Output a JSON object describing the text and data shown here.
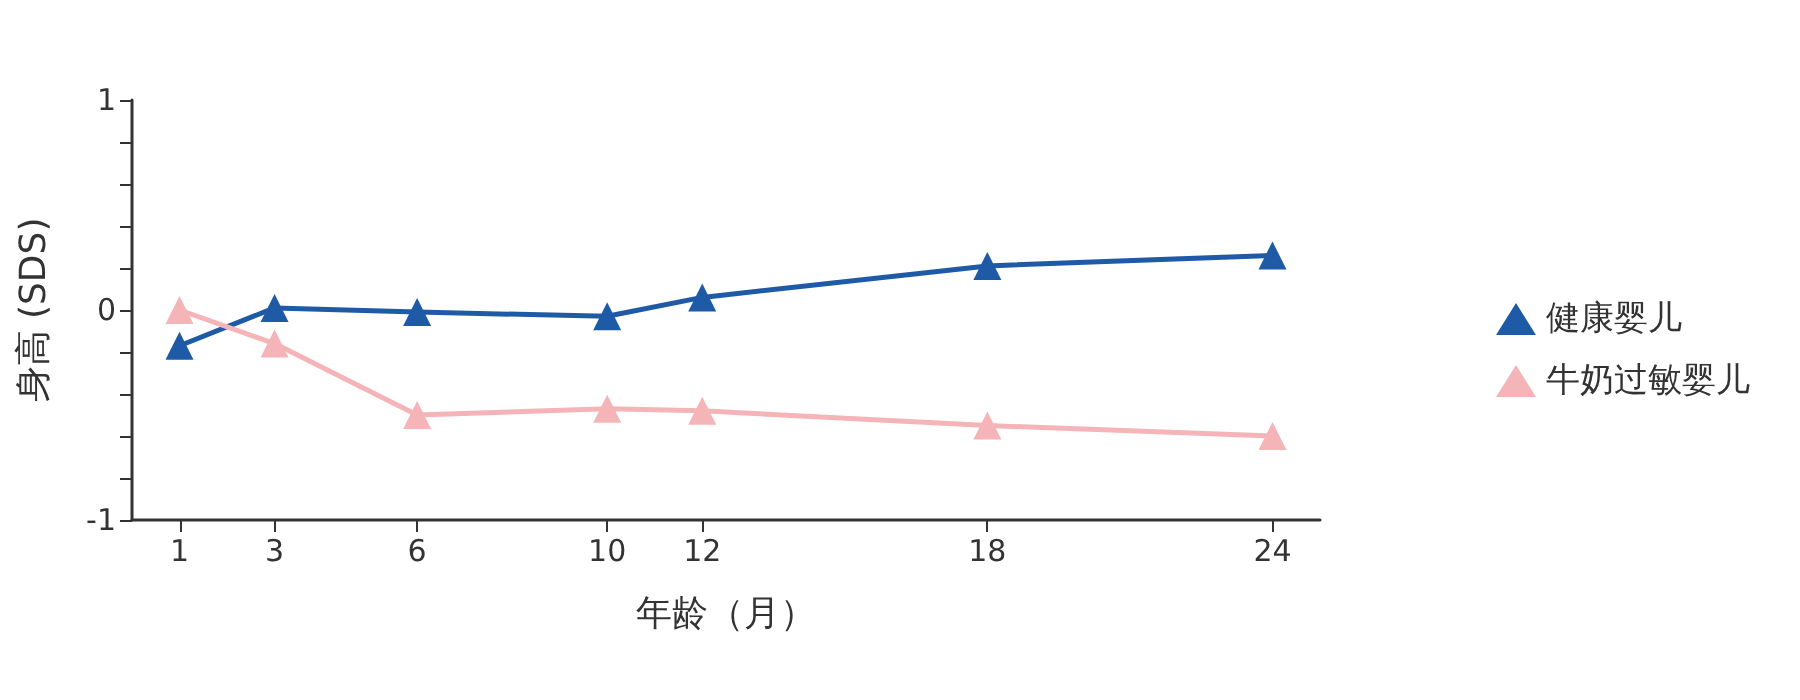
{
  "chart_data": {
    "type": "line",
    "xlabel": "年龄（月）",
    "ylabel": "身高 (SDS)",
    "x": [
      1,
      3,
      6,
      10,
      12,
      18,
      24
    ],
    "series": [
      {
        "name": "健康婴儿",
        "color": "#1f5aa6",
        "values": [
          -0.17,
          0.01,
          -0.01,
          -0.03,
          0.06,
          0.21,
          0.26
        ]
      },
      {
        "name": "牛奶过敏婴儿",
        "color": "#f4b4b8",
        "values": [
          0,
          -0.16,
          -0.5,
          -0.47,
          -0.48,
          -0.55,
          -0.6
        ]
      }
    ],
    "xlim": [
      0,
      25
    ],
    "xticks": [
      1,
      3,
      6,
      10,
      12,
      18,
      24
    ],
    "ylim": [
      -1,
      1
    ],
    "yticks": [
      -1,
      {
        "value": -0.8,
        "label": null
      },
      {
        "value": -0.6,
        "label": null
      },
      {
        "value": -0.4,
        "label": null
      },
      {
        "value": -0.2,
        "label": null
      },
      0,
      {
        "value": 0.2,
        "label": null
      },
      {
        "value": 0.4,
        "label": null
      },
      {
        "value": 0.6,
        "label": null
      },
      {
        "value": 0.8,
        "label": null
      },
      1
    ],
    "marker": "triangle",
    "line_style": "solid",
    "legend": "right",
    "grid": false
  }
}
